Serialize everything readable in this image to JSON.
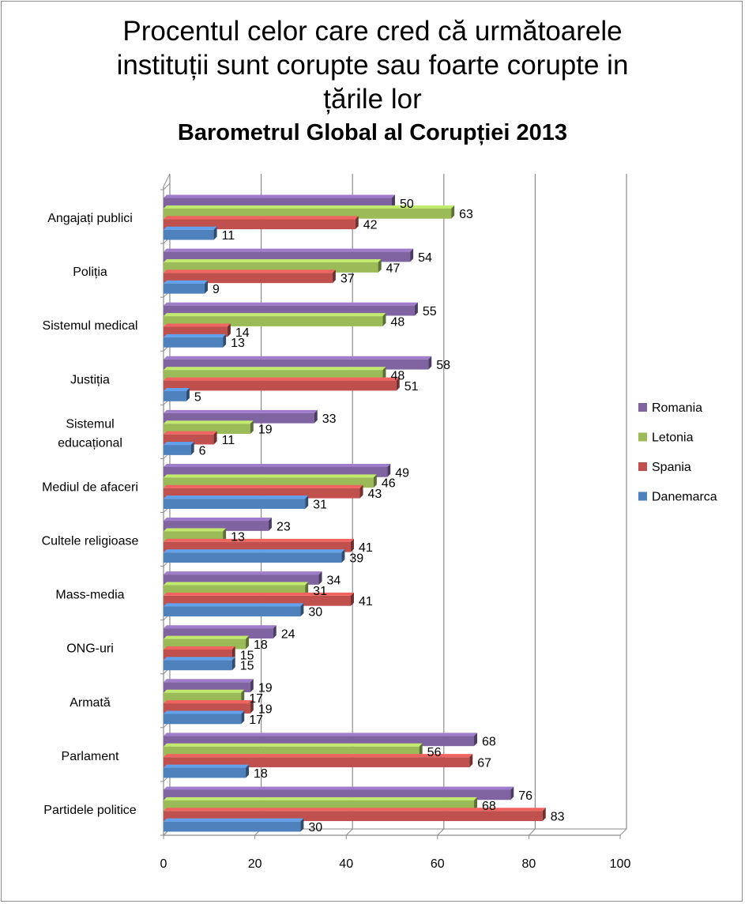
{
  "chart_data": {
    "type": "bar",
    "orientation": "horizontal",
    "title": "Procentul celor care cred că următoarele\ninstituții sunt corupte sau foarte corupte in\nțările lor",
    "subtitle": "Barometrul Global al Corupției 2013",
    "categories": [
      "Angajați publici",
      "Poliția",
      "Sistemul medical",
      "Justiția",
      "Sistemul\neducațional",
      "Mediul de afaceri",
      "Cultele religioase",
      "Mass-media",
      "ONG-uri",
      "Armată",
      "Parlament",
      "Partidele politice"
    ],
    "series": [
      {
        "name": "Romania",
        "color": "#8064a2",
        "values": [
          50,
          54,
          55,
          58,
          33,
          49,
          23,
          34,
          24,
          19,
          68,
          76
        ]
      },
      {
        "name": "Letonia",
        "color": "#9bbb59",
        "values": [
          63,
          47,
          48,
          48,
          19,
          46,
          13,
          31,
          18,
          17,
          56,
          68
        ]
      },
      {
        "name": "Spania",
        "color": "#c0504d",
        "values": [
          42,
          37,
          14,
          51,
          11,
          43,
          41,
          41,
          15,
          19,
          67,
          83
        ]
      },
      {
        "name": "Danemarca",
        "color": "#4f81bd",
        "values": [
          11,
          9,
          13,
          5,
          6,
          31,
          39,
          30,
          15,
          17,
          18,
          30
        ]
      }
    ],
    "xlim": [
      0,
      100
    ],
    "xticks": [
      0,
      20,
      40,
      60,
      80,
      100
    ],
    "grid": true,
    "legend": "right"
  }
}
